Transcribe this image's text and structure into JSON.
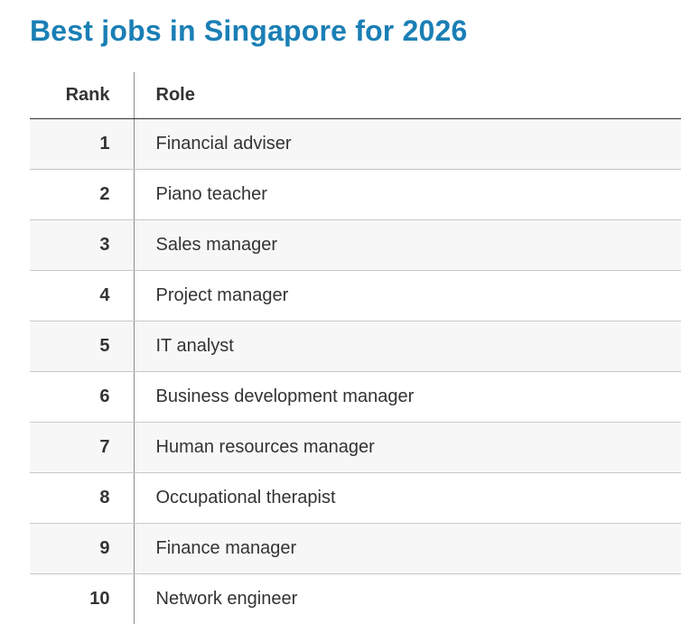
{
  "title": "Best jobs in Singapore for 2026",
  "table": {
    "headers": {
      "rank": "Rank",
      "role": "Role"
    },
    "rows": [
      {
        "rank": "1",
        "role": "Financial adviser"
      },
      {
        "rank": "2",
        "role": "Piano teacher"
      },
      {
        "rank": "3",
        "role": "Sales manager"
      },
      {
        "rank": "4",
        "role": "Project manager"
      },
      {
        "rank": "5",
        "role": "IT analyst"
      },
      {
        "rank": "6",
        "role": "Business development manager"
      },
      {
        "rank": "7",
        "role": "Human resources manager"
      },
      {
        "rank": "8",
        "role": "Occupational therapist"
      },
      {
        "rank": "9",
        "role": "Finance manager"
      },
      {
        "rank": "10",
        "role": "Network engineer"
      }
    ]
  },
  "colors": {
    "title": "#1a7fb5",
    "text": "#333333",
    "row_shade": "#f7f7f7"
  }
}
